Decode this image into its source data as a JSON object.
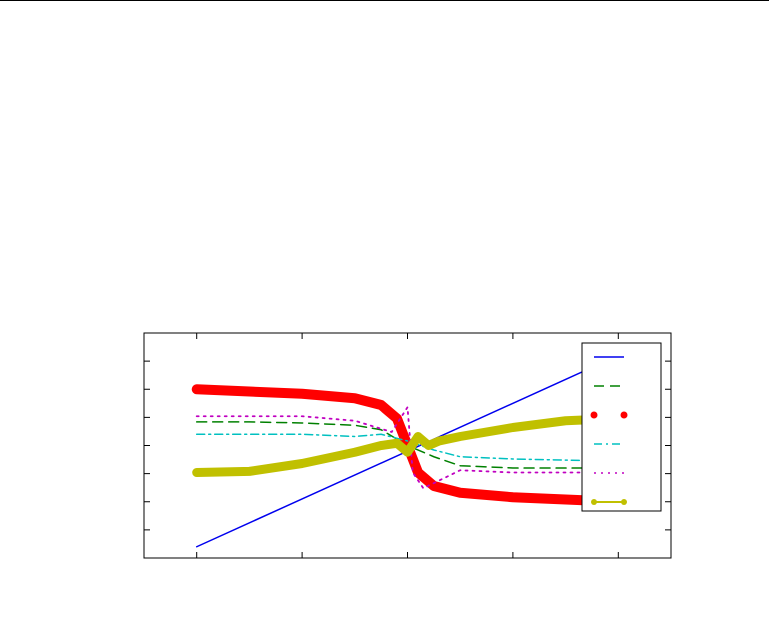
{
  "chart_data": {
    "type": "line",
    "title": "",
    "xlabel": "",
    "ylabel": "",
    "xlim": [
      -0.5,
      0.5
    ],
    "ylim": [
      -0.5,
      0.5
    ],
    "grid": false,
    "legend": {
      "placement": "top-right",
      "entries": [
        "",
        "",
        "",
        "",
        "",
        ""
      ]
    },
    "series": [
      {
        "style": "solid",
        "color": "#0000ee",
        "x": [
          -0.4,
          0.4
        ],
        "y": [
          -0.45,
          0.4
        ]
      },
      {
        "style": "dashed",
        "color": "#008000",
        "x": [
          -0.4,
          -0.3,
          -0.2,
          -0.1,
          -0.05,
          0.0,
          0.05,
          0.1,
          0.2,
          0.3,
          0.4
        ],
        "y": [
          0.105,
          0.105,
          0.1,
          0.09,
          0.07,
          0.0,
          -0.05,
          -0.09,
          -0.1,
          -0.1,
          -0.1
        ]
      },
      {
        "style": "points",
        "color": "#ff0000",
        "x": [
          -0.4,
          -0.3,
          -0.2,
          -0.1,
          -0.05,
          -0.02,
          0.0,
          0.02,
          0.05,
          0.1,
          0.2,
          0.3,
          0.4
        ],
        "y": [
          0.25,
          0.24,
          0.23,
          0.21,
          0.18,
          0.12,
          0.0,
          -0.12,
          -0.18,
          -0.21,
          -0.23,
          -0.24,
          -0.25
        ]
      },
      {
        "style": "dash-dot",
        "color": "#00c0c0",
        "x": [
          -0.4,
          -0.2,
          -0.1,
          -0.05,
          0.0,
          0.05,
          0.1,
          0.2,
          0.4
        ],
        "y": [
          0.05,
          0.05,
          0.04,
          0.05,
          0.02,
          -0.02,
          -0.05,
          -0.06,
          -0.07
        ]
      },
      {
        "style": "dotted",
        "color": "#c000c0",
        "x": [
          -0.4,
          -0.2,
          -0.1,
          -0.03,
          0.0,
          0.01,
          0.03,
          0.1,
          0.2,
          0.4
        ],
        "y": [
          0.13,
          0.13,
          0.11,
          0.06,
          0.17,
          -0.12,
          -0.19,
          -0.11,
          -0.12,
          -0.12
        ]
      },
      {
        "style": "thick-line-points",
        "color": "#c0c000",
        "x": [
          -0.4,
          -0.3,
          -0.2,
          -0.1,
          -0.05,
          -0.02,
          0.0,
          0.02,
          0.04,
          0.06,
          0.1,
          0.2,
          0.3,
          0.4
        ],
        "y": [
          -0.12,
          -0.115,
          -0.08,
          -0.03,
          0.0,
          0.01,
          -0.03,
          0.04,
          0.0,
          0.02,
          0.04,
          0.08,
          0.11,
          0.12
        ]
      }
    ]
  }
}
